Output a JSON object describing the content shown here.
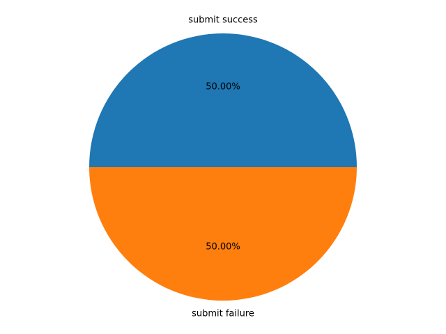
{
  "chart_data": {
    "type": "pie",
    "title": "",
    "start_angle_deg": 0,
    "direction": "counterclockwise",
    "slices": [
      {
        "label": "submit success",
        "value": 50,
        "pct_label": "50.00%",
        "color": "#1f77b4"
      },
      {
        "label": "submit failure",
        "value": 50,
        "pct_label": "50.00%",
        "color": "#ff7f0e"
      }
    ]
  }
}
